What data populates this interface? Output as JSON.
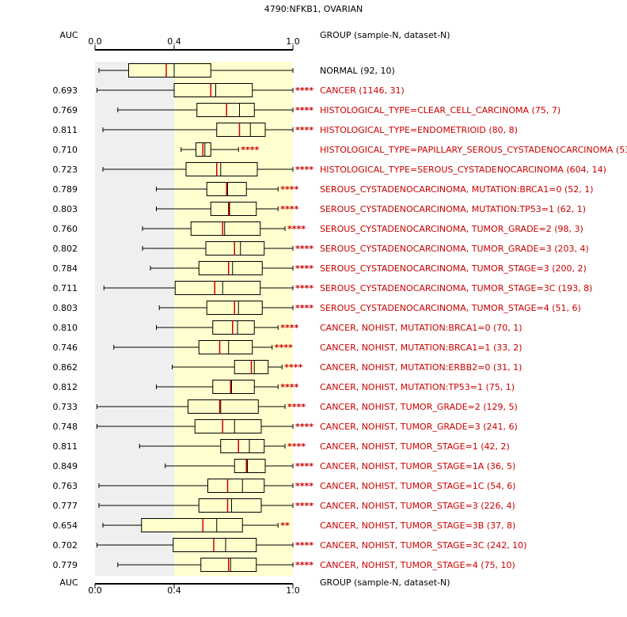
{
  "title": "4790:NFKB1, OVARIAN",
  "colors": {
    "gray_band": "#efefef",
    "yellow_band": "#ffffd0",
    "box_fill": "#ffffcc",
    "median": "#cc0000",
    "mean": "#000000",
    "label_red": "#cc0000",
    "label_black": "#000000"
  },
  "chart_data": {
    "type": "boxplot",
    "title": "4790:NFKB1, OVARIAN",
    "auc_header": "AUC",
    "group_header": "GROUP (sample-N, dataset-N)",
    "xlim": [
      0.0,
      1.0
    ],
    "xticks": [
      0.0,
      0.4,
      1.0
    ],
    "xtick_labels": [
      "0.0",
      "0.4",
      "1.0"
    ],
    "gray_band": [
      0.0,
      0.4
    ],
    "yellow_band": [
      0.4,
      1.0
    ],
    "groups": [
      {
        "label": "NORMAL (92, 10)",
        "auc": "",
        "stars": "",
        "whisker_low": 0.02,
        "q1": 0.17,
        "median": 0.36,
        "mean": 0.4,
        "q3": 0.585,
        "whisker_high": 1.0
      },
      {
        "label": "CANCER (1146, 31)",
        "auc": "0.693",
        "stars": "****",
        "whisker_low": 0.01,
        "q1": 0.4,
        "median": 0.585,
        "mean": 0.61,
        "q3": 0.795,
        "whisker_high": 1.0
      },
      {
        "label": "HISTOLOGICAL_TYPE=CLEAR_CELL_CARCINOMA (75, 7)",
        "auc": "0.769",
        "stars": "****",
        "whisker_low": 0.115,
        "q1": 0.515,
        "median": 0.665,
        "mean": 0.73,
        "q3": 0.805,
        "whisker_high": 1.0
      },
      {
        "label": "HISTOLOGICAL_TYPE=ENDOMETRIOID (80, 8)",
        "auc": "0.811",
        "stars": "****",
        "whisker_low": 0.04,
        "q1": 0.615,
        "median": 0.73,
        "mean": 0.785,
        "q3": 0.86,
        "whisker_high": 1.0
      },
      {
        "label": "HISTOLOGICAL_TYPE=PAPILLARY_SEROUS_CYSTADENOCARCINOMA (53, 1)",
        "auc": "0.710",
        "stars": "****",
        "whisker_low": 0.435,
        "q1": 0.51,
        "median": 0.545,
        "mean": 0.555,
        "q3": 0.585,
        "whisker_high": 0.725
      },
      {
        "label": "HISTOLOGICAL_TYPE=SEROUS_CYSTADENOCARCINOMA (604, 14)",
        "auc": "0.723",
        "stars": "****",
        "whisker_low": 0.04,
        "q1": 0.46,
        "median": 0.615,
        "mean": 0.635,
        "q3": 0.82,
        "whisker_high": 1.0
      },
      {
        "label": "SEROUS_CYSTADENOCARCINOMA, MUTATION:BRCA1=0 (52, 1)",
        "auc": "0.789",
        "stars": "****",
        "whisker_low": 0.31,
        "q1": 0.565,
        "median": 0.665,
        "mean": 0.67,
        "q3": 0.765,
        "whisker_high": 0.925
      },
      {
        "label": "SEROUS_CYSTADENOCARCINOMA, MUTATION:TP53=1 (62, 1)",
        "auc": "0.803",
        "stars": "****",
        "whisker_low": 0.31,
        "q1": 0.585,
        "median": 0.675,
        "mean": 0.68,
        "q3": 0.815,
        "whisker_high": 0.925
      },
      {
        "label": "SEROUS_CYSTADENOCARCINOMA, TUMOR_GRADE=2 (98, 3)",
        "auc": "0.760",
        "stars": "****",
        "whisker_low": 0.24,
        "q1": 0.485,
        "median": 0.645,
        "mean": 0.655,
        "q3": 0.835,
        "whisker_high": 0.96
      },
      {
        "label": "SEROUS_CYSTADENOCARCINOMA, TUMOR_GRADE=3 (203, 4)",
        "auc": "0.802",
        "stars": "****",
        "whisker_low": 0.24,
        "q1": 0.56,
        "median": 0.705,
        "mean": 0.735,
        "q3": 0.855,
        "whisker_high": 1.0
      },
      {
        "label": "SEROUS_CYSTADENOCARCINOMA, TUMOR_STAGE=3 (200, 2)",
        "auc": "0.784",
        "stars": "****",
        "whisker_low": 0.28,
        "q1": 0.525,
        "median": 0.675,
        "mean": 0.695,
        "q3": 0.845,
        "whisker_high": 1.0
      },
      {
        "label": "SEROUS_CYSTADENOCARCINOMA, TUMOR_STAGE=3C (193, 8)",
        "auc": "0.711",
        "stars": "****",
        "whisker_low": 0.045,
        "q1": 0.405,
        "median": 0.605,
        "mean": 0.645,
        "q3": 0.835,
        "whisker_high": 1.0
      },
      {
        "label": "SEROUS_CYSTADENOCARCINOMA, TUMOR_STAGE=4 (51, 6)",
        "auc": "0.803",
        "stars": "****",
        "whisker_low": 0.325,
        "q1": 0.565,
        "median": 0.705,
        "mean": 0.725,
        "q3": 0.845,
        "whisker_high": 1.0
      },
      {
        "label": "CANCER, NOHIST, MUTATION:BRCA1=0 (70, 1)",
        "auc": "0.810",
        "stars": "****",
        "whisker_low": 0.31,
        "q1": 0.595,
        "median": 0.695,
        "mean": 0.72,
        "q3": 0.805,
        "whisker_high": 0.925
      },
      {
        "label": "CANCER, NOHIST, MUTATION:BRCA1=1 (33, 2)",
        "auc": "0.746",
        "stars": "****",
        "whisker_low": 0.095,
        "q1": 0.525,
        "median": 0.63,
        "mean": 0.675,
        "q3": 0.795,
        "whisker_high": 0.895
      },
      {
        "label": "CANCER, NOHIST, MUTATION:ERBB2=0 (31, 1)",
        "auc": "0.862",
        "stars": "****",
        "whisker_low": 0.39,
        "q1": 0.705,
        "median": 0.79,
        "mean": 0.805,
        "q3": 0.875,
        "whisker_high": 0.945
      },
      {
        "label": "CANCER, NOHIST, MUTATION:TP53=1 (75, 1)",
        "auc": "0.812",
        "stars": "****",
        "whisker_low": 0.31,
        "q1": 0.595,
        "median": 0.685,
        "mean": 0.69,
        "q3": 0.805,
        "whisker_high": 0.925
      },
      {
        "label": "CANCER, NOHIST, TUMOR_GRADE=2 (129, 5)",
        "auc": "0.733",
        "stars": "****",
        "whisker_low": 0.01,
        "q1": 0.47,
        "median": 0.63,
        "mean": 0.635,
        "q3": 0.825,
        "whisker_high": 0.96
      },
      {
        "label": "CANCER, NOHIST, TUMOR_GRADE=3 (241, 6)",
        "auc": "0.748",
        "stars": "****",
        "whisker_low": 0.01,
        "q1": 0.505,
        "median": 0.645,
        "mean": 0.705,
        "q3": 0.84,
        "whisker_high": 1.0
      },
      {
        "label": "CANCER, NOHIST, TUMOR_STAGE=1 (42, 2)",
        "auc": "0.811",
        "stars": "****",
        "whisker_low": 0.225,
        "q1": 0.635,
        "median": 0.725,
        "mean": 0.78,
        "q3": 0.855,
        "whisker_high": 0.96
      },
      {
        "label": "CANCER, NOHIST, TUMOR_STAGE=1A (36, 5)",
        "auc": "0.849",
        "stars": "****",
        "whisker_low": 0.355,
        "q1": 0.705,
        "median": 0.765,
        "mean": 0.77,
        "q3": 0.86,
        "whisker_high": 1.0
      },
      {
        "label": "CANCER, NOHIST, TUMOR_STAGE=1C (54, 6)",
        "auc": "0.763",
        "stars": "****",
        "whisker_low": 0.02,
        "q1": 0.57,
        "median": 0.67,
        "mean": 0.745,
        "q3": 0.855,
        "whisker_high": 1.0
      },
      {
        "label": "CANCER, NOHIST, TUMOR_STAGE=3 (226, 4)",
        "auc": "0.777",
        "stars": "****",
        "whisker_low": 0.02,
        "q1": 0.525,
        "median": 0.67,
        "mean": 0.69,
        "q3": 0.84,
        "whisker_high": 1.0
      },
      {
        "label": "CANCER, NOHIST, TUMOR_STAGE=3B (37, 8)",
        "auc": "0.654",
        "stars": "**",
        "whisker_low": 0.04,
        "q1": 0.235,
        "median": 0.545,
        "mean": 0.615,
        "q3": 0.745,
        "whisker_high": 0.925
      },
      {
        "label": "CANCER, NOHIST, TUMOR_STAGE=3C (242, 10)",
        "auc": "0.702",
        "stars": "****",
        "whisker_low": 0.01,
        "q1": 0.395,
        "median": 0.6,
        "mean": 0.66,
        "q3": 0.815,
        "whisker_high": 1.0
      },
      {
        "label": "CANCER, NOHIST, TUMOR_STAGE=4 (75, 10)",
        "auc": "0.779",
        "stars": "****",
        "whisker_low": 0.115,
        "q1": 0.535,
        "median": 0.675,
        "mean": 0.685,
        "q3": 0.815,
        "whisker_high": 1.0
      }
    ]
  }
}
